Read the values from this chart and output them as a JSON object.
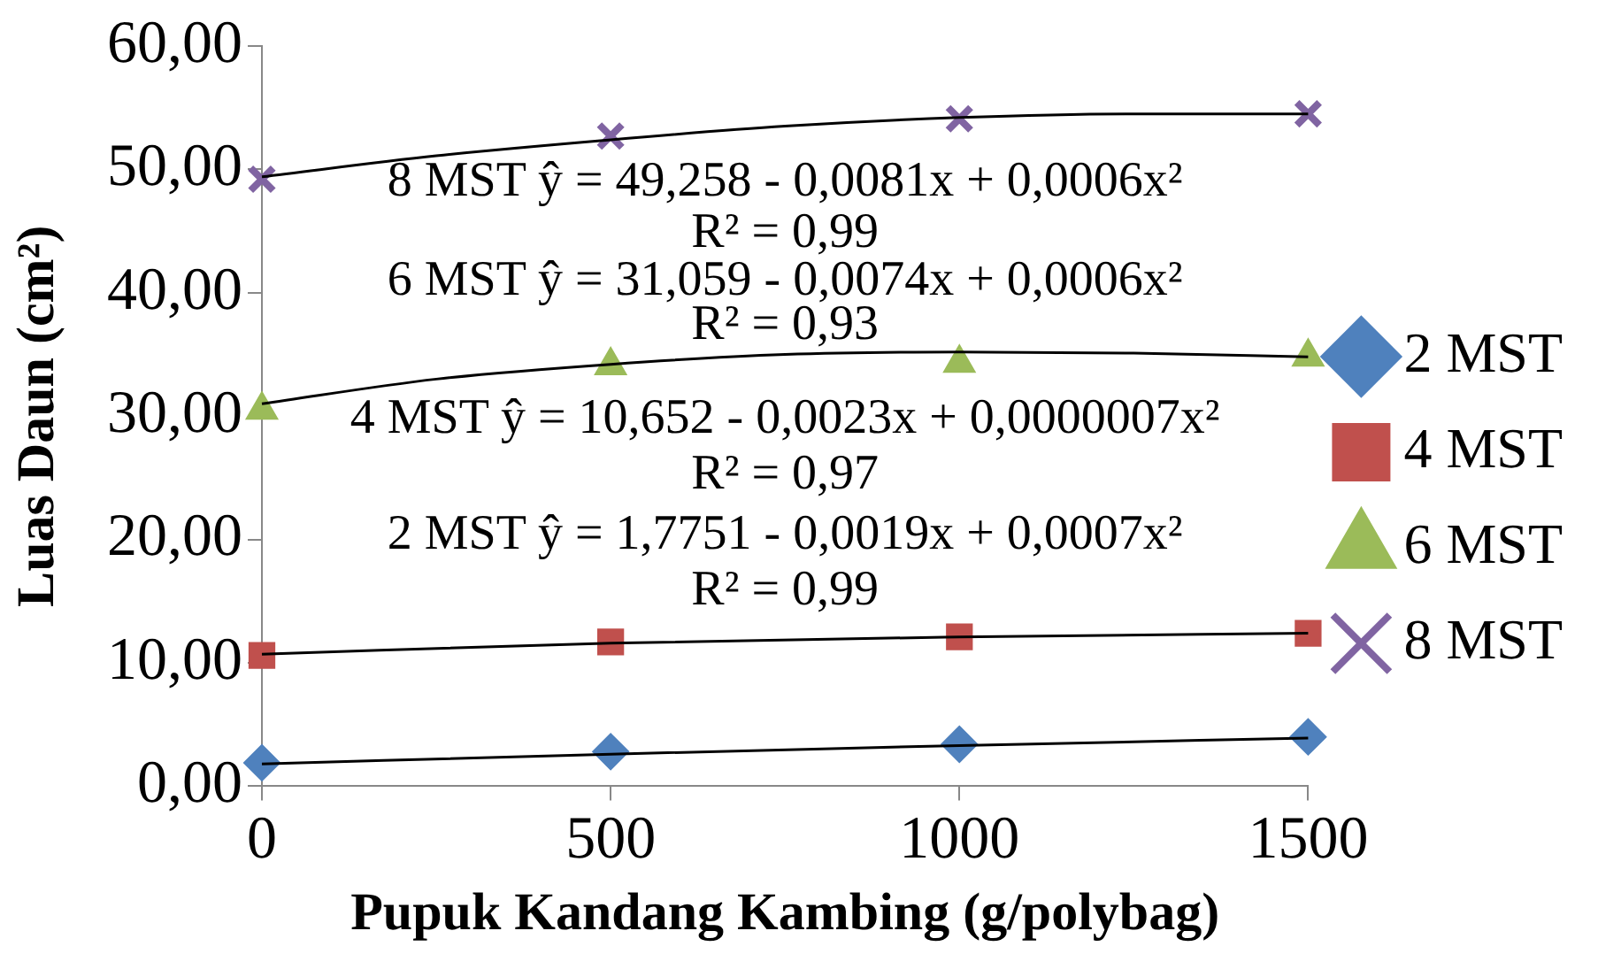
{
  "chart_data": {
    "type": "scatter",
    "xlabel": "Pupuk Kandang Kambing (g/polybag)",
    "ylabel": "Luas Daun (cm²)",
    "x": [
      0,
      500,
      1000,
      1500
    ],
    "series": [
      {
        "name": "2 MST",
        "color": "#4f81bd",
        "marker": "diamond",
        "values": [
          1.9,
          2.8,
          3.4,
          4.0
        ]
      },
      {
        "name": "4 MST",
        "color": "#c0504d",
        "marker": "square",
        "values": [
          10.6,
          11.7,
          12.1,
          12.4
        ]
      },
      {
        "name": "6 MST",
        "color": "#9bbb59",
        "marker": "triangle",
        "values": [
          30.5,
          34.1,
          34.3,
          34.8
        ]
      },
      {
        "name": "8 MST",
        "color": "#8064a2",
        "marker": "cross",
        "values": [
          49.2,
          52.7,
          54.1,
          54.5
        ]
      },
      {
        "type": "line",
        "color": "#000000",
        "marker": "none",
        "x": [
          0,
          500,
          1000,
          1500
        ],
        "values": [
          1.8,
          2.6,
          3.3,
          3.9
        ]
      },
      {
        "type": "line",
        "color": "#000000",
        "marker": "none",
        "x": [
          0,
          500,
          1000,
          1500
        ],
        "values": [
          10.7,
          11.6,
          12.1,
          12.4
        ]
      },
      {
        "type": "line",
        "color": "#000000",
        "marker": "none",
        "x": [
          0,
          250,
          500,
          750,
          1000,
          1250,
          1500
        ],
        "values": [
          31.0,
          33.0,
          34.2,
          35.0,
          35.2,
          35.1,
          34.8
        ]
      },
      {
        "type": "line",
        "color": "#000000",
        "marker": "none",
        "x": [
          0,
          250,
          500,
          750,
          1000,
          1250,
          1500
        ],
        "values": [
          49.4,
          51.1,
          52.4,
          53.5,
          54.2,
          54.5,
          54.5
        ]
      }
    ],
    "xlim": [
      0,
      1500
    ],
    "xticks": [
      0,
      500,
      1000,
      1500
    ],
    "ylim": [
      0,
      60
    ],
    "yticks": [
      {
        "value": 0,
        "label": "0,00"
      },
      {
        "value": 10,
        "label": "10,00"
      },
      {
        "value": 20,
        "label": "20,00"
      },
      {
        "value": 30,
        "label": "30,00"
      },
      {
        "value": 40,
        "label": "40,00"
      },
      {
        "value": 50,
        "label": "50,00"
      },
      {
        "value": 60,
        "label": "60,00"
      }
    ],
    "grid": false,
    "legend": "right",
    "annotations": [
      "8 MST ŷ = 49,258 - 0,0081x + 0,0006x²",
      "R² = 0,99",
      "6 MST ŷ = 31,059 - 0,0074x + 0,0006x²",
      "R² = 0,93",
      "4 MST ŷ = 10,652 - 0,0023x + 0,0000007x²",
      "R² = 0,97",
      "2 MST ŷ = 1,7751 - 0,0019x + 0,0007x²",
      "R² = 0,99"
    ]
  }
}
